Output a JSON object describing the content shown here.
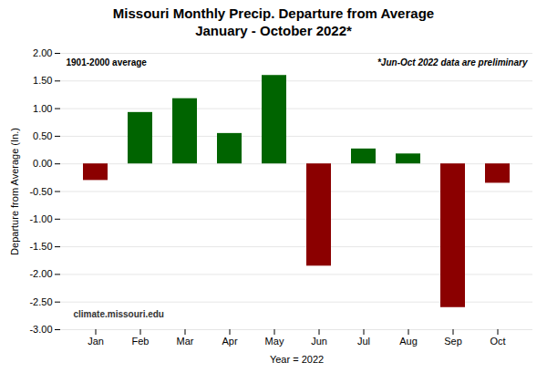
{
  "chart_data": {
    "type": "bar",
    "title": "Missouri Monthly Precip. Departure from Average\nJanuary - October 2022*",
    "categories": [
      "Jan",
      "Feb",
      "Mar",
      "Apr",
      "May",
      "Jun",
      "Jul",
      "Aug",
      "Sep",
      "Oct"
    ],
    "values": [
      -0.3,
      0.93,
      1.18,
      0.55,
      1.6,
      -1.85,
      0.27,
      0.18,
      -2.6,
      -0.35
    ],
    "colors": [
      "#8B0000",
      "#006400",
      "#006400",
      "#006400",
      "#006400",
      "#8B0000",
      "#006400",
      "#006400",
      "#8B0000",
      "#8B0000"
    ],
    "ylim": [
      -3.0,
      2.0
    ],
    "yticks": [
      {
        "value": -3.0,
        "label": "-3.00"
      },
      {
        "value": -2.5,
        "label": "-2.50"
      },
      {
        "value": -2.0,
        "label": "-2.00"
      },
      {
        "value": -1.5,
        "label": "-1.50"
      },
      {
        "value": -1.0,
        "label": "-1.00"
      },
      {
        "value": -0.5,
        "label": "-0.50"
      },
      {
        "value": 0.0,
        "label": "0.00"
      },
      {
        "value": 0.5,
        "label": "0.50"
      },
      {
        "value": 1.0,
        "label": "1.00"
      },
      {
        "value": 1.5,
        "label": "1.50"
      },
      {
        "value": 2.0,
        "label": "2.00"
      }
    ],
    "ylabel": "Departure from Average (In.)",
    "xlabel": "Year = 2022",
    "annotations": [
      "1901-2000 average",
      "*Jun-Oct 2022 data are preliminary",
      "climate.missouri.edu"
    ],
    "grid": true
  }
}
